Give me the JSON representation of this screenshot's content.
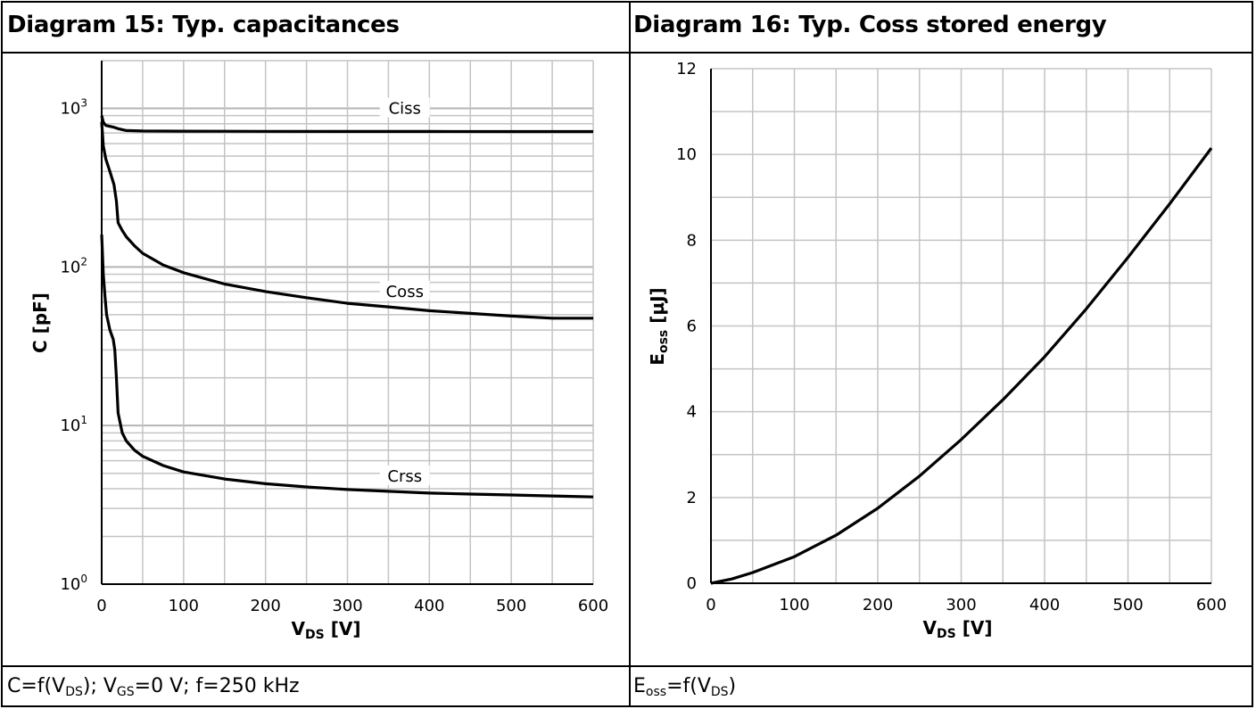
{
  "diagrams": [
    {
      "title": "Diagram 15: Typ. capacitances",
      "caption": {
        "base": "C=f(V",
        "sub1": "DS",
        "mid": "); V",
        "sub2": "GS",
        "tail": "=0 V; f=250 kHz"
      }
    },
    {
      "title": "Diagram 16: Typ. Coss stored energy",
      "caption": {
        "base": "E",
        "sub1": "oss",
        "mid": "=f(V",
        "sub2": "DS",
        "tail": ")"
      }
    }
  ],
  "chart_data": [
    {
      "type": "line",
      "title": "Diagram 15: Typ. capacitances",
      "xlabel": {
        "main": "V",
        "sub": "DS",
        "unit": " [V]"
      },
      "ylabel": "C [pF]",
      "xlim": [
        0,
        600
      ],
      "ylim": [
        1,
        2000
      ],
      "yscale": "log",
      "grid": true,
      "xticks": [
        0,
        100,
        200,
        300,
        400,
        500,
        600
      ],
      "yticks": [
        {
          "base": "10",
          "exp": "0",
          "value": 1
        },
        {
          "base": "10",
          "exp": "1",
          "value": 10
        },
        {
          "base": "10",
          "exp": "2",
          "value": 100
        },
        {
          "base": "10",
          "exp": "3",
          "value": 1000
        }
      ],
      "series": [
        {
          "name": "Ciss",
          "label_at": [
            370,
            1000
          ],
          "x": [
            0,
            2,
            5,
            10,
            15,
            20,
            30,
            50,
            100,
            200,
            300,
            400,
            500,
            600
          ],
          "y": [
            900,
            820,
            780,
            770,
            760,
            745,
            725,
            720,
            718,
            716,
            715,
            715,
            714,
            714
          ]
        },
        {
          "name": "Coss",
          "label_at": [
            370,
            70
          ],
          "x": [
            0,
            2,
            5,
            10,
            15,
            18,
            20,
            25,
            30,
            40,
            50,
            75,
            100,
            150,
            200,
            250,
            300,
            350,
            400,
            450,
            500,
            550,
            600
          ],
          "y": [
            820,
            580,
            480,
            400,
            330,
            260,
            190,
            170,
            155,
            136,
            122,
            103,
            92,
            78,
            70,
            64,
            59,
            56,
            53,
            51,
            49,
            47.5,
            47.5
          ]
        },
        {
          "name": "Crss",
          "label_at": [
            370,
            4.8
          ],
          "x": [
            0,
            2,
            4,
            6,
            10,
            14,
            16,
            18,
            20,
            25,
            30,
            40,
            50,
            75,
            100,
            150,
            200,
            250,
            300,
            350,
            400,
            450,
            500,
            550,
            600
          ],
          "y": [
            160,
            90,
            65,
            50,
            40,
            35,
            30,
            20,
            12,
            9,
            8,
            7,
            6.4,
            5.6,
            5.1,
            4.6,
            4.3,
            4.1,
            3.95,
            3.85,
            3.75,
            3.7,
            3.65,
            3.6,
            3.55
          ]
        }
      ]
    },
    {
      "type": "line",
      "title": "Diagram 16: Typ. Coss stored energy",
      "xlabel": {
        "main": "V",
        "sub": "DS",
        "unit": " [V]"
      },
      "ylabel": {
        "main": "E",
        "sub": "oss",
        "unit": " [µJ]"
      },
      "xlim": [
        0,
        600
      ],
      "ylim": [
        0,
        12
      ],
      "grid": true,
      "xticks": [
        0,
        100,
        200,
        300,
        400,
        500,
        600
      ],
      "yticks": [
        0,
        2,
        4,
        6,
        8,
        10,
        12
      ],
      "series": [
        {
          "name": "",
          "x": [
            0,
            25,
            50,
            100,
            150,
            200,
            250,
            300,
            350,
            400,
            450,
            500,
            550,
            600
          ],
          "y": [
            0,
            0.1,
            0.25,
            0.62,
            1.12,
            1.75,
            2.5,
            3.35,
            4.28,
            5.28,
            6.4,
            7.6,
            8.85,
            10.15
          ]
        }
      ]
    }
  ]
}
